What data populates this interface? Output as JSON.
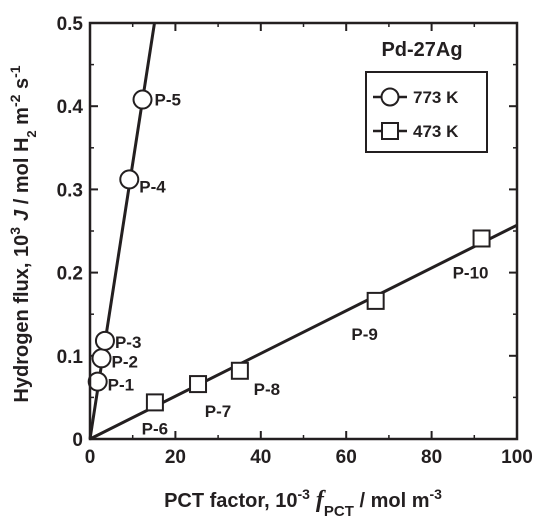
{
  "chart_data": {
    "type": "scatter",
    "title": "Pd-27Ag",
    "xlabel": {
      "main": "PCT factor, 10",
      "exp": "-3",
      "sym": "f",
      "sub": "PCT",
      "unit": " / mol m",
      "unit_exp": "-3"
    },
    "ylabel": {
      "main": "Hydrogen flux, 10",
      "exp": "3",
      "sym": "J",
      "unit1": " / mol H",
      "sub": "2",
      "unit2": " m",
      "unit2_exp": "-2",
      "unit3": " s",
      "unit3_exp": "-1"
    },
    "xlim": [
      0,
      100
    ],
    "ylim": [
      0,
      0.5
    ],
    "xticks": [
      0,
      20,
      40,
      60,
      80,
      100
    ],
    "xtick_labels": [
      "0",
      "20",
      "40",
      "60",
      "80",
      "100"
    ],
    "yticks": [
      0,
      0.1,
      0.2,
      0.3,
      0.4,
      0.5
    ],
    "ytick_labels": [
      "0",
      "0.1",
      "0.2",
      "0.3",
      "0.4",
      "0.5"
    ],
    "legend_position": "top-right",
    "series": [
      {
        "name": "773 K",
        "marker": "circle",
        "points": [
          {
            "label": "P-1",
            "x": 1.8,
            "y": 0.069
          },
          {
            "label": "P-2",
            "x": 2.7,
            "y": 0.097
          },
          {
            "label": "P-3",
            "x": 3.5,
            "y": 0.118
          },
          {
            "label": "P-4",
            "x": 9.2,
            "y": 0.312
          },
          {
            "label": "P-5",
            "x": 12.3,
            "y": 0.408
          }
        ],
        "fit_line": {
          "from": [
            0,
            0
          ],
          "to": [
            15.1,
            0.5
          ]
        }
      },
      {
        "name": "473 K",
        "marker": "square",
        "points": [
          {
            "label": "P-6",
            "x": 15.2,
            "y": 0.044
          },
          {
            "label": "P-7",
            "x": 25.3,
            "y": 0.066
          },
          {
            "label": "P-8",
            "x": 35.1,
            "y": 0.082
          },
          {
            "label": "P-9",
            "x": 66.9,
            "y": 0.166
          },
          {
            "label": "P-10",
            "x": 91.7,
            "y": 0.241
          }
        ],
        "fit_line": {
          "from": [
            0,
            0
          ],
          "to": [
            100,
            0.257
          ]
        }
      }
    ]
  },
  "colors": {
    "ink": "#231f20",
    "background": "#ffffff"
  }
}
